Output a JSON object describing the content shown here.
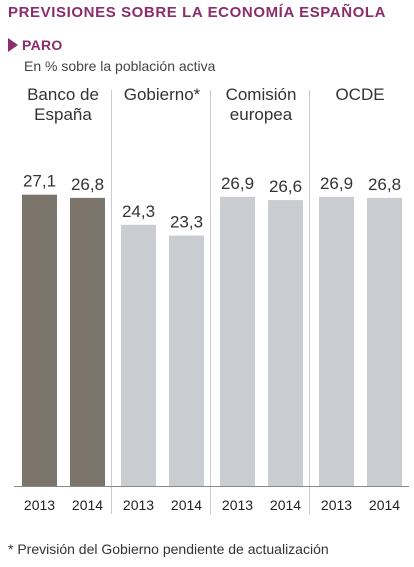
{
  "title": "PREVISIONES SOBRE LA ECONOMÍA ESPAÑOLA",
  "section_label": "PARO",
  "subtitle": "En % sobre la población activa",
  "footnote": "* Previsión del Gobierno pendiente de actualización",
  "colors": {
    "accent": "#8b2d6b",
    "bar_highlight": "#7a746a",
    "bar_default": "#c9cdd1",
    "divider": "#c8cbcf",
    "baseline": "#8a8a8a"
  },
  "chart_data": {
    "type": "bar",
    "ylim": [
      0,
      30
    ],
    "grid": false,
    "groups": [
      {
        "name": [
          "Banco de",
          "España"
        ],
        "highlight": true,
        "categories": [
          "2013",
          "2014"
        ],
        "values": [
          27.1,
          26.8
        ],
        "labels": [
          "27,1",
          "26,8"
        ]
      },
      {
        "name": [
          "Gobierno*"
        ],
        "highlight": false,
        "categories": [
          "2013",
          "2014"
        ],
        "values": [
          24.3,
          23.3
        ],
        "labels": [
          "24,3",
          "23,3"
        ]
      },
      {
        "name": [
          "Comisión",
          "europea"
        ],
        "highlight": false,
        "categories": [
          "2013",
          "2014"
        ],
        "values": [
          26.9,
          26.6
        ],
        "labels": [
          "26,9",
          "26,6"
        ]
      },
      {
        "name": [
          "OCDE"
        ],
        "highlight": false,
        "categories": [
          "2013",
          "2014"
        ],
        "values": [
          26.9,
          26.8
        ],
        "labels": [
          "26,9",
          "26,8"
        ]
      }
    ]
  }
}
